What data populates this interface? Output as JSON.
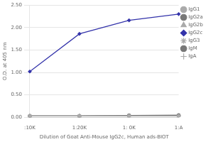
{
  "chart_data": {
    "type": "line",
    "xlabel": "Dilution of Goat Anti-Mouse IgG2c, Human ads-BIOT",
    "ylabel": "O.D. at 405 nm",
    "categories": [
      ":10K",
      "1:20K",
      "1: 0K",
      "1:A"
    ],
    "series": [
      {
        "name": "IgG1",
        "color": "#aaaaaa",
        "marker": "circle",
        "values": [
          0.03,
          0.03,
          0.03,
          0.03
        ]
      },
      {
        "name": "IgG2a",
        "color": "#777777",
        "marker": "circle",
        "values": [
          0.03,
          0.03,
          0.04,
          0.04
        ]
      },
      {
        "name": "IgG2b",
        "color": "#aaaaaa",
        "marker": "triangle",
        "values": [
          0.03,
          0.03,
          0.03,
          0.03
        ]
      },
      {
        "name": "IgG2c",
        "color": "#3333aa",
        "marker": "diamond",
        "values": [
          1.02,
          1.86,
          2.16,
          2.3
        ]
      },
      {
        "name": "IgG3",
        "color": "#aaaaaa",
        "marker": "star",
        "values": [
          0.03,
          0.03,
          0.04,
          0.04
        ]
      },
      {
        "name": "IgM",
        "color": "#777777",
        "marker": "circle",
        "values": [
          0.03,
          0.03,
          0.04,
          0.05
        ]
      },
      {
        "name": "IgA",
        "color": "#aaaaaa",
        "marker": "plus",
        "values": [
          0.03,
          0.03,
          0.03,
          0.03
        ]
      }
    ],
    "ylim": [
      0.0,
      2.5
    ],
    "yticks": [
      {
        "value": 0,
        "label": "0.00"
      },
      {
        "value": 0.5,
        "label": "0.50"
      },
      {
        "value": 1,
        "label": "1.00"
      },
      {
        "value": 1.5,
        "label": "1.50"
      },
      {
        "value": 2,
        "label": "2.00"
      },
      {
        "value": 2.5,
        "label": "2.50"
      }
    ],
    "grid": "y",
    "legend": "right"
  }
}
